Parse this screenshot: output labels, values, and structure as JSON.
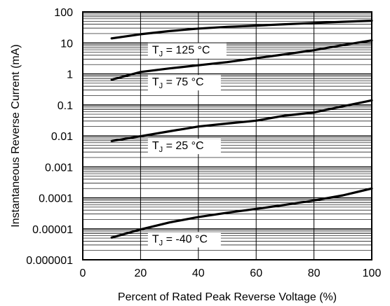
{
  "chart_data": {
    "type": "line",
    "title": "",
    "xlabel": "Percent of Rated Peak Reverse Voltage (%)",
    "ylabel": "Instantaneous Reverse Current (mA)",
    "xlim": [
      0,
      100
    ],
    "ylim": [
      1e-06,
      100
    ],
    "yscale": "log",
    "grid": true,
    "x_ticks": [
      "0",
      "20",
      "40",
      "60",
      "80",
      "100"
    ],
    "y_ticks": [
      "0.000001",
      "0.00001",
      "0.0001",
      "0.001",
      "0.01",
      "0.1",
      "1",
      "10",
      "100"
    ],
    "series": [
      {
        "name": "TJ = 125 °C",
        "label_main": "T",
        "label_sub": "J",
        "label_rest": " = 125 °C",
        "x": [
          10,
          20,
          30,
          40,
          50,
          60,
          70,
          80,
          90,
          100
        ],
        "y": [
          14,
          19,
          24,
          29,
          33,
          36,
          40,
          44,
          48,
          52
        ]
      },
      {
        "name": "TJ = 75 °C",
        "label_main": "T",
        "label_sub": "J",
        "label_rest": " = 75 °C",
        "x": [
          10,
          20,
          30,
          40,
          50,
          60,
          70,
          80,
          90,
          100
        ],
        "y": [
          0.65,
          1.15,
          1.5,
          1.9,
          2.4,
          3.2,
          4.3,
          5.8,
          8.5,
          12
        ]
      },
      {
        "name": "TJ = 25 °C",
        "label_main": "T",
        "label_sub": "J",
        "label_rest": " = 25 °C",
        "x": [
          10,
          20,
          30,
          40,
          50,
          60,
          70,
          80,
          90,
          100
        ],
        "y": [
          0.0068,
          0.0097,
          0.014,
          0.02,
          0.025,
          0.031,
          0.045,
          0.057,
          0.09,
          0.14
        ]
      },
      {
        "name": "TJ = -40 °C",
        "label_main": "T",
        "label_sub": "J",
        "label_rest": " = -40 °C",
        "x": [
          10,
          20,
          30,
          40,
          50,
          60,
          70,
          80,
          90,
          100
        ],
        "y": [
          5.2e-06,
          9.5e-06,
          1.6e-05,
          2.4e-05,
          3.3e-05,
          4.4e-05,
          5.9e-05,
          8.2e-05,
          0.00012,
          0.0002
        ]
      }
    ]
  }
}
